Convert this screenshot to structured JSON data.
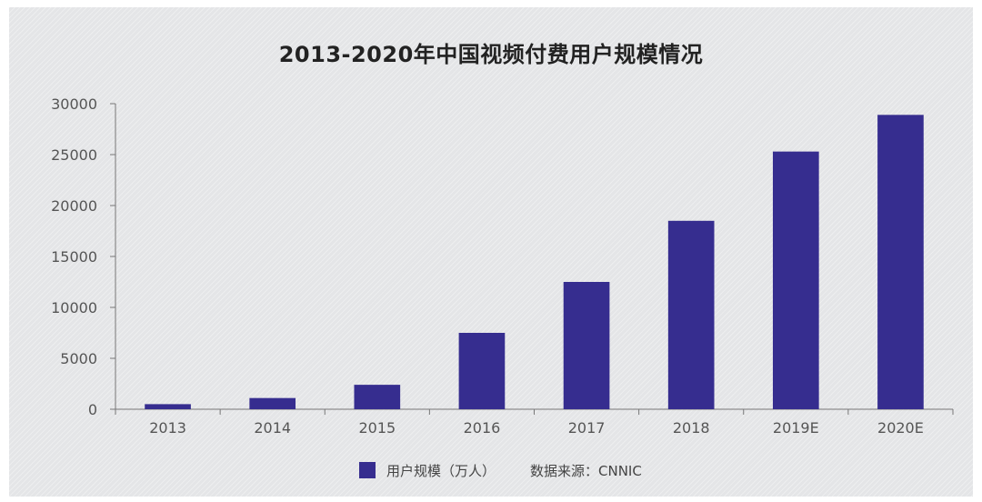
{
  "chart_data": {
    "type": "bar",
    "title": "2013-2020年中国视频付费用户规模情况",
    "categories": [
      "2013",
      "2014",
      "2015",
      "2016",
      "2017",
      "2018",
      "2019E",
      "2020E"
    ],
    "series": [
      {
        "name": "用户规模（万人）",
        "values": [
          500,
          1100,
          2400,
          7500,
          12500,
          18500,
          25300,
          28900
        ],
        "color": "#362d8f"
      }
    ],
    "ylim": [
      0,
      30000
    ],
    "yticks": [
      0,
      5000,
      10000,
      15000,
      20000,
      25000,
      30000
    ],
    "grid": false,
    "legend_position": "bottom"
  },
  "legend": {
    "series_label": "用户规模（万人）",
    "source": "数据来源：CNNIC"
  }
}
